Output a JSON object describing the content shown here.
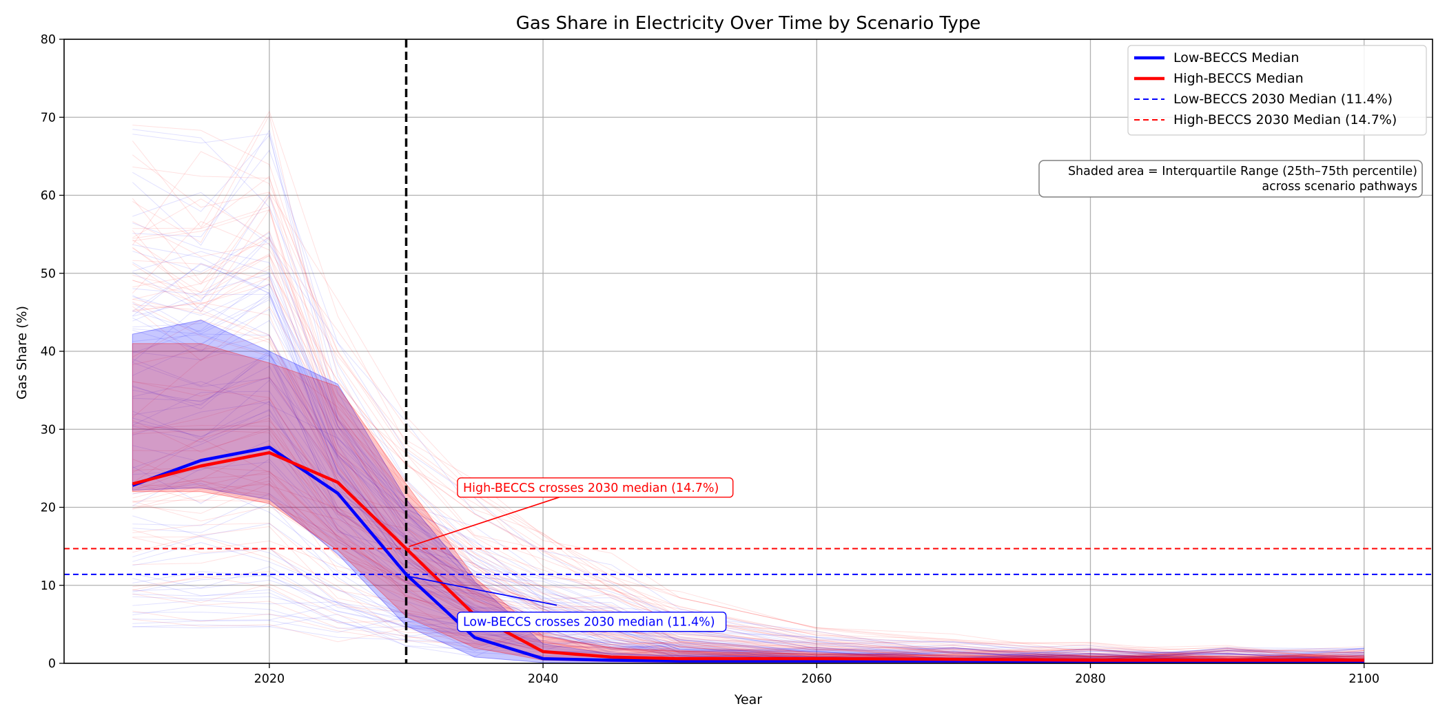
{
  "chart_data": {
    "type": "line",
    "title": "Gas Share in Electricity Over Time by Scenario Type",
    "xlabel": "Year",
    "ylabel": "Gas Share (%)",
    "xlim": [
      2005,
      2105
    ],
    "ylim": [
      0,
      80
    ],
    "xticks": [
      2020,
      2040,
      2060,
      2080,
      2100
    ],
    "yticks": [
      0,
      10,
      20,
      30,
      40,
      50,
      60,
      70,
      80
    ],
    "grid": true,
    "legend_position": "top-right",
    "x": [
      2010,
      2015,
      2020,
      2025,
      2030,
      2035,
      2040,
      2045,
      2050,
      2060,
      2070,
      2080,
      2090,
      2100
    ],
    "series": [
      {
        "name": "Low-BECCS Median",
        "color": "#0000ff",
        "values": [
          22.8,
          26.0,
          27.7,
          21.8,
          11.4,
          3.3,
          0.6,
          0.4,
          0.3,
          0.3,
          0.3,
          0.2,
          0.2,
          0.2
        ]
      },
      {
        "name": "High-BECCS Median",
        "color": "#ff0000",
        "values": [
          23.0,
          25.3,
          27.0,
          23.2,
          14.7,
          6.2,
          1.5,
          0.8,
          0.6,
          0.6,
          0.5,
          0.4,
          0.4,
          0.4
        ]
      }
    ],
    "iqr_bands": [
      {
        "series": "Low-BECCS",
        "color": "#0000ff",
        "q25": [
          22.2,
          22.5,
          21.0,
          14.0,
          4.8,
          0.8,
          0.1,
          0.0,
          0.0,
          0.0,
          0.0,
          0.0,
          0.0,
          0.0
        ],
        "q75": [
          42.2,
          44.0,
          40.0,
          35.8,
          21.0,
          10.5,
          2.5,
          1.2,
          1.0,
          0.8,
          0.7,
          0.6,
          0.6,
          0.6
        ]
      },
      {
        "series": "High-BECCS",
        "color": "#ff0000",
        "q25": [
          22.0,
          22.0,
          20.5,
          14.5,
          6.0,
          2.0,
          0.4,
          0.2,
          0.1,
          0.1,
          0.1,
          0.1,
          0.1,
          0.1
        ],
        "q75": [
          41.0,
          41.0,
          38.5,
          35.5,
          23.0,
          11.0,
          3.5,
          2.0,
          1.5,
          1.2,
          1.0,
          0.9,
          0.9,
          0.9
        ]
      }
    ],
    "reference_lines": [
      {
        "label": "Low-BECCS 2030 Median (11.4%)",
        "orientation": "horizontal",
        "y": 11.4,
        "color": "#0000ff",
        "style": "dashed"
      },
      {
        "label": "High-BECCS 2030 Median (14.7%)",
        "orientation": "horizontal",
        "y": 14.7,
        "color": "#ff0000",
        "style": "dashed"
      },
      {
        "label": "",
        "orientation": "vertical",
        "x": 2030,
        "color": "#000000",
        "style": "dashed"
      }
    ],
    "annotations": [
      {
        "text": "High-BECCS crosses 2030 median (14.7%)",
        "color": "#ff0000",
        "point": [
          2030,
          14.7
        ],
        "text_at": [
          2034,
          22
        ]
      },
      {
        "text": "Low-BECCS crosses 2030 median (11.4%)",
        "color": "#0000ff",
        "point": [
          2030,
          11.4
        ],
        "text_at": [
          2034,
          4.8
        ]
      }
    ],
    "info_box": {
      "lines": [
        "Shaded area = Interquartile Range (25th–75th percentile)",
        "across scenario pathways"
      ]
    },
    "legend": [
      {
        "label": "Low-BECCS Median",
        "color": "#0000ff",
        "style": "solid"
      },
      {
        "label": "High-BECCS Median",
        "color": "#ff0000",
        "style": "solid"
      },
      {
        "label": "Low-BECCS 2030 Median (11.4%)",
        "color": "#0000ff",
        "style": "dashed"
      },
      {
        "label": "High-BECCS 2030 Median (14.7%)",
        "color": "#ff0000",
        "style": "dashed"
      }
    ]
  }
}
